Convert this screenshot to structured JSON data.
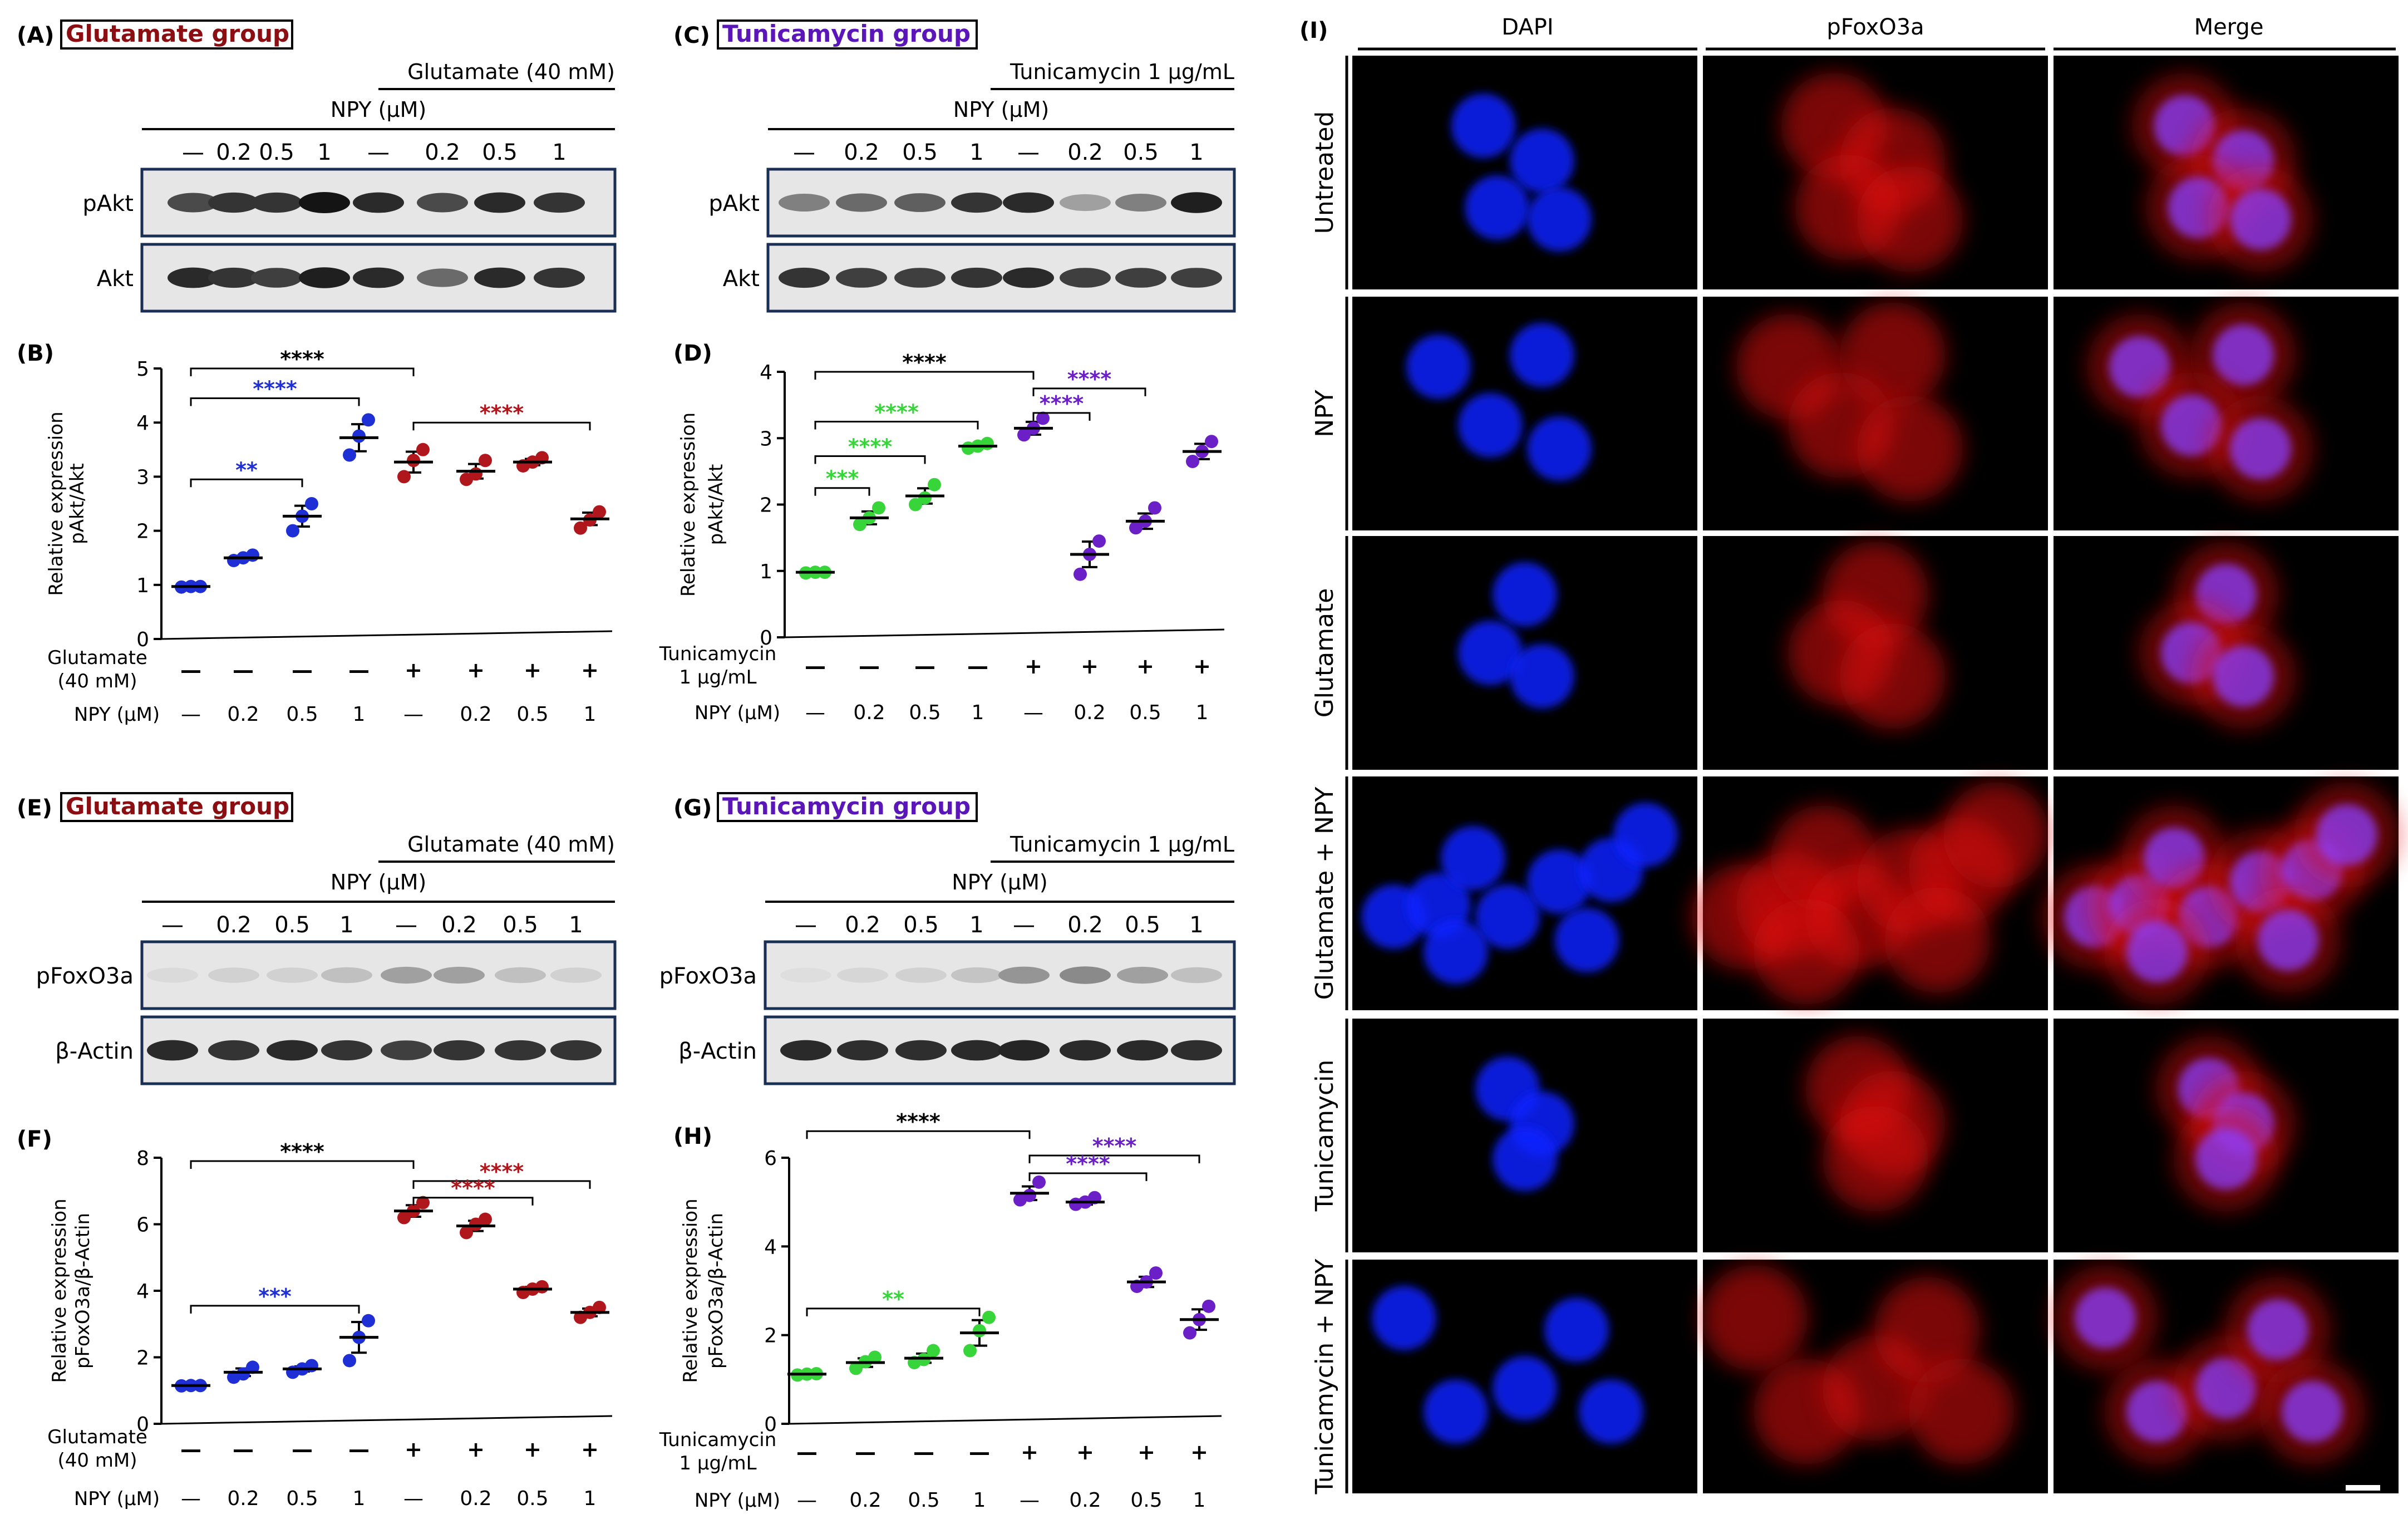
{
  "figure": {
    "groups": {
      "glutamate": "Glutamate group",
      "tunicamycin": "Tunicamycin group"
    },
    "colors": {
      "black": "#000000",
      "control_blue": "#1f2fd6",
      "glu_red": "#b0171c",
      "tuni_green": "#37d43a",
      "tuni_purple": "#6a1fc7",
      "label_red": "#8b0f12",
      "label_purple": "#5a16b8",
      "dapi": "#1024ff",
      "pfox": "#e01010"
    },
    "panels": {
      "A": {
        "letter": "(A)",
        "group_label": "Glutamate group",
        "treatment_header": "Glutamate (40 mM)",
        "npy_header": "NPY (μM)",
        "lanes": [
          "—",
          "0.2",
          "0.5",
          "1",
          "—",
          "0.2",
          "0.5",
          "1"
        ],
        "blots": [
          "pAkt",
          "Akt"
        ]
      },
      "C": {
        "letter": "(C)",
        "group_label": "Tunicamycin group",
        "treatment_header": "Tunicamycin 1 μg/mL",
        "npy_header": "NPY (μM)",
        "lanes": [
          "—",
          "0.2",
          "0.5",
          "1",
          "—",
          "0.2",
          "0.5",
          "1"
        ],
        "blots": [
          "pAkt",
          "Akt"
        ]
      },
      "E": {
        "letter": "(E)",
        "group_label": "Glutamate group",
        "treatment_header": "Glutamate (40 mM)",
        "npy_header": "NPY (μM)",
        "lanes": [
          "—",
          "0.2",
          "0.5",
          "1",
          "—",
          "0.2",
          "0.5",
          "1"
        ],
        "blots": [
          "pFoxO3a",
          "β-Actin"
        ]
      },
      "G": {
        "letter": "(G)",
        "group_label": "Tunicamycin group",
        "treatment_header": "Tunicamycin 1 μg/mL",
        "npy_header": "NPY (μM)",
        "lanes": [
          "—",
          "0.2",
          "0.5",
          "1",
          "—",
          "0.2",
          "0.5",
          "1"
        ],
        "blots": [
          "pFoxO3a",
          "β-Actin"
        ]
      },
      "I": {
        "letter": "(I)",
        "columns": [
          "DAPI",
          "pFoxO3a",
          "Merge"
        ],
        "rows": [
          "Untreated",
          "NPY",
          "Glutamate",
          "Glutamate + NPY",
          "Tunicamycin",
          "Tunicamycin + NPY"
        ]
      }
    }
  },
  "chart_data": [
    {
      "id": "B",
      "letter": "(B)",
      "type": "scatter",
      "ylabel_lines": [
        "Relative expression",
        "pAkt/Akt"
      ],
      "ylim": [
        0,
        5
      ],
      "yticks": [
        0,
        1,
        2,
        3,
        4,
        5
      ],
      "treatment_label": [
        "Glutamate",
        "(40 mM)"
      ],
      "treatment_row": [
        "—",
        "—",
        "—",
        "—",
        "+",
        "+",
        "+",
        "+"
      ],
      "npy_label": "NPY (μM)",
      "npy_row": [
        "—",
        "0.2",
        "0.5",
        "1",
        "—",
        "0.2",
        "0.5",
        "1"
      ],
      "groups": [
        {
          "color": "control_blue",
          "mean": 0.97,
          "points": [
            0.96,
            0.97,
            0.97
          ]
        },
        {
          "color": "control_blue",
          "mean": 1.5,
          "points": [
            1.45,
            1.5,
            1.55
          ]
        },
        {
          "color": "control_blue",
          "mean": 2.27,
          "points": [
            2.0,
            2.27,
            2.5
          ]
        },
        {
          "color": "control_blue",
          "mean": 3.72,
          "points": [
            3.4,
            3.75,
            4.05
          ]
        },
        {
          "color": "glu_red",
          "mean": 3.27,
          "points": [
            3.0,
            3.3,
            3.5
          ]
        },
        {
          "color": "glu_red",
          "mean": 3.1,
          "points": [
            2.95,
            3.05,
            3.3
          ]
        },
        {
          "color": "glu_red",
          "mean": 3.27,
          "points": [
            3.2,
            3.27,
            3.35
          ]
        },
        {
          "color": "glu_red",
          "mean": 2.22,
          "points": [
            2.05,
            2.2,
            2.35
          ]
        }
      ],
      "brackets": [
        {
          "from": 0,
          "to": 4,
          "y": 5.0,
          "stars": "****",
          "color": "black"
        },
        {
          "from": 0,
          "to": 3,
          "y": 4.45,
          "stars": "****",
          "color": "control_blue"
        },
        {
          "from": 0,
          "to": 2,
          "y": 2.95,
          "stars": "**",
          "color": "control_blue"
        },
        {
          "from": 4,
          "to": 7,
          "y": 4.0,
          "stars": "****",
          "color": "glu_red"
        }
      ]
    },
    {
      "id": "D",
      "letter": "(D)",
      "type": "scatter",
      "ylabel_lines": [
        "Relative expression",
        "pAkt/Akt"
      ],
      "ylim": [
        0,
        4
      ],
      "yticks": [
        0,
        1,
        2,
        3,
        4
      ],
      "treatment_label": [
        "Tunicamycin",
        "1 μg/mL"
      ],
      "treatment_row": [
        "—",
        "—",
        "—",
        "—",
        "+",
        "+",
        "+",
        "+"
      ],
      "npy_label": "NPY (μM)",
      "npy_row": [
        "—",
        "0.2",
        "0.5",
        "1",
        "—",
        "0.2",
        "0.5",
        "1"
      ],
      "groups": [
        {
          "color": "tuni_green",
          "mean": 0.98,
          "points": [
            0.97,
            0.98,
            0.98
          ]
        },
        {
          "color": "tuni_green",
          "mean": 1.8,
          "points": [
            1.7,
            1.8,
            1.95
          ]
        },
        {
          "color": "tuni_green",
          "mean": 2.13,
          "points": [
            2.0,
            2.1,
            2.3
          ]
        },
        {
          "color": "tuni_green",
          "mean": 2.88,
          "points": [
            2.85,
            2.88,
            2.92
          ]
        },
        {
          "color": "tuni_purple",
          "mean": 3.15,
          "points": [
            3.05,
            3.15,
            3.3
          ]
        },
        {
          "color": "tuni_purple",
          "mean": 1.25,
          "points": [
            0.95,
            1.25,
            1.45
          ]
        },
        {
          "color": "tuni_purple",
          "mean": 1.75,
          "points": [
            1.65,
            1.75,
            1.95
          ]
        },
        {
          "color": "tuni_purple",
          "mean": 2.8,
          "points": [
            2.65,
            2.8,
            2.95
          ]
        }
      ],
      "brackets": [
        {
          "from": 0,
          "to": 4,
          "y": 4.0,
          "stars": "****",
          "color": "black"
        },
        {
          "from": 0,
          "to": 3,
          "y": 3.25,
          "stars": "****",
          "color": "tuni_green"
        },
        {
          "from": 0,
          "to": 2,
          "y": 2.73,
          "stars": "****",
          "color": "tuni_green"
        },
        {
          "from": 0,
          "to": 1,
          "y": 2.25,
          "stars": "***",
          "color": "tuni_green"
        },
        {
          "from": 4,
          "to": 6,
          "y": 3.75,
          "stars": "****",
          "color": "tuni_purple"
        },
        {
          "from": 4,
          "to": 5,
          "y": 3.38,
          "stars": "****",
          "color": "tuni_purple"
        }
      ]
    },
    {
      "id": "F",
      "letter": "(F)",
      "type": "scatter",
      "ylabel_lines": [
        "Relative expression",
        "pFoxO3a/β-Actin"
      ],
      "ylim": [
        0,
        8
      ],
      "yticks": [
        0,
        2,
        4,
        6,
        8
      ],
      "treatment_label": [
        "Glutamate",
        "(40 mM)"
      ],
      "treatment_row": [
        "—",
        "—",
        "—",
        "—",
        "+",
        "+",
        "+",
        "+"
      ],
      "npy_label": "NPY (μM)",
      "npy_row": [
        "—",
        "0.2",
        "0.5",
        "1",
        "—",
        "0.2",
        "0.5",
        "1"
      ],
      "groups": [
        {
          "color": "control_blue",
          "mean": 1.15,
          "points": [
            1.14,
            1.15,
            1.15
          ]
        },
        {
          "color": "control_blue",
          "mean": 1.55,
          "points": [
            1.4,
            1.5,
            1.7
          ]
        },
        {
          "color": "control_blue",
          "mean": 1.65,
          "points": [
            1.55,
            1.65,
            1.75
          ]
        },
        {
          "color": "control_blue",
          "mean": 2.6,
          "points": [
            1.9,
            2.6,
            3.1
          ]
        },
        {
          "color": "glu_red",
          "mean": 6.4,
          "points": [
            6.2,
            6.4,
            6.65
          ]
        },
        {
          "color": "glu_red",
          "mean": 5.95,
          "points": [
            5.75,
            6.0,
            6.15
          ]
        },
        {
          "color": "glu_red",
          "mean": 4.05,
          "points": [
            3.95,
            4.05,
            4.12
          ]
        },
        {
          "color": "glu_red",
          "mean": 3.35,
          "points": [
            3.2,
            3.35,
            3.5
          ]
        }
      ],
      "brackets": [
        {
          "from": 0,
          "to": 4,
          "y": 7.9,
          "stars": "****",
          "color": "black"
        },
        {
          "from": 0,
          "to": 3,
          "y": 3.55,
          "stars": "***",
          "color": "control_blue"
        },
        {
          "from": 4,
          "to": 7,
          "y": 7.3,
          "stars": "****",
          "color": "glu_red"
        },
        {
          "from": 4,
          "to": 6,
          "y": 6.8,
          "stars": "****",
          "color": "glu_red"
        }
      ]
    },
    {
      "id": "H",
      "letter": "(H)",
      "type": "scatter",
      "ylabel_lines": [
        "Relative expression",
        "pFoxO3a/β-Actin"
      ],
      "ylim": [
        0,
        6
      ],
      "yticks": [
        0,
        2,
        4,
        6
      ],
      "treatment_label": [
        "Tunicamycin",
        "1 μg/mL"
      ],
      "treatment_row": [
        "—",
        "—",
        "—",
        "—",
        "+",
        "+",
        "+",
        "+"
      ],
      "npy_label": "NPY (μM)",
      "npy_row": [
        "—",
        "0.2",
        "0.5",
        "1",
        "—",
        "0.2",
        "0.5",
        "1"
      ],
      "groups": [
        {
          "color": "tuni_green",
          "mean": 1.12,
          "points": [
            1.1,
            1.12,
            1.13
          ]
        },
        {
          "color": "tuni_green",
          "mean": 1.38,
          "points": [
            1.25,
            1.4,
            1.5
          ]
        },
        {
          "color": "tuni_green",
          "mean": 1.48,
          "points": [
            1.38,
            1.45,
            1.65
          ]
        },
        {
          "color": "tuni_green",
          "mean": 2.05,
          "points": [
            1.65,
            2.1,
            2.4
          ]
        },
        {
          "color": "tuni_purple",
          "mean": 5.2,
          "points": [
            5.05,
            5.15,
            5.45
          ]
        },
        {
          "color": "tuni_purple",
          "mean": 5.0,
          "points": [
            4.95,
            5.0,
            5.1
          ]
        },
        {
          "color": "tuni_purple",
          "mean": 3.2,
          "points": [
            3.1,
            3.2,
            3.4
          ]
        },
        {
          "color": "tuni_purple",
          "mean": 2.35,
          "points": [
            2.05,
            2.35,
            2.65
          ]
        }
      ],
      "brackets": [
        {
          "from": 0,
          "to": 4,
          "y": 6.6,
          "stars": "****",
          "color": "black"
        },
        {
          "from": 0,
          "to": 3,
          "y": 2.6,
          "stars": "**",
          "color": "tuni_green"
        },
        {
          "from": 4,
          "to": 7,
          "y": 6.05,
          "stars": "****",
          "color": "tuni_purple"
        },
        {
          "from": 4,
          "to": 6,
          "y": 5.65,
          "stars": "****",
          "color": "tuni_purple"
        }
      ]
    }
  ]
}
